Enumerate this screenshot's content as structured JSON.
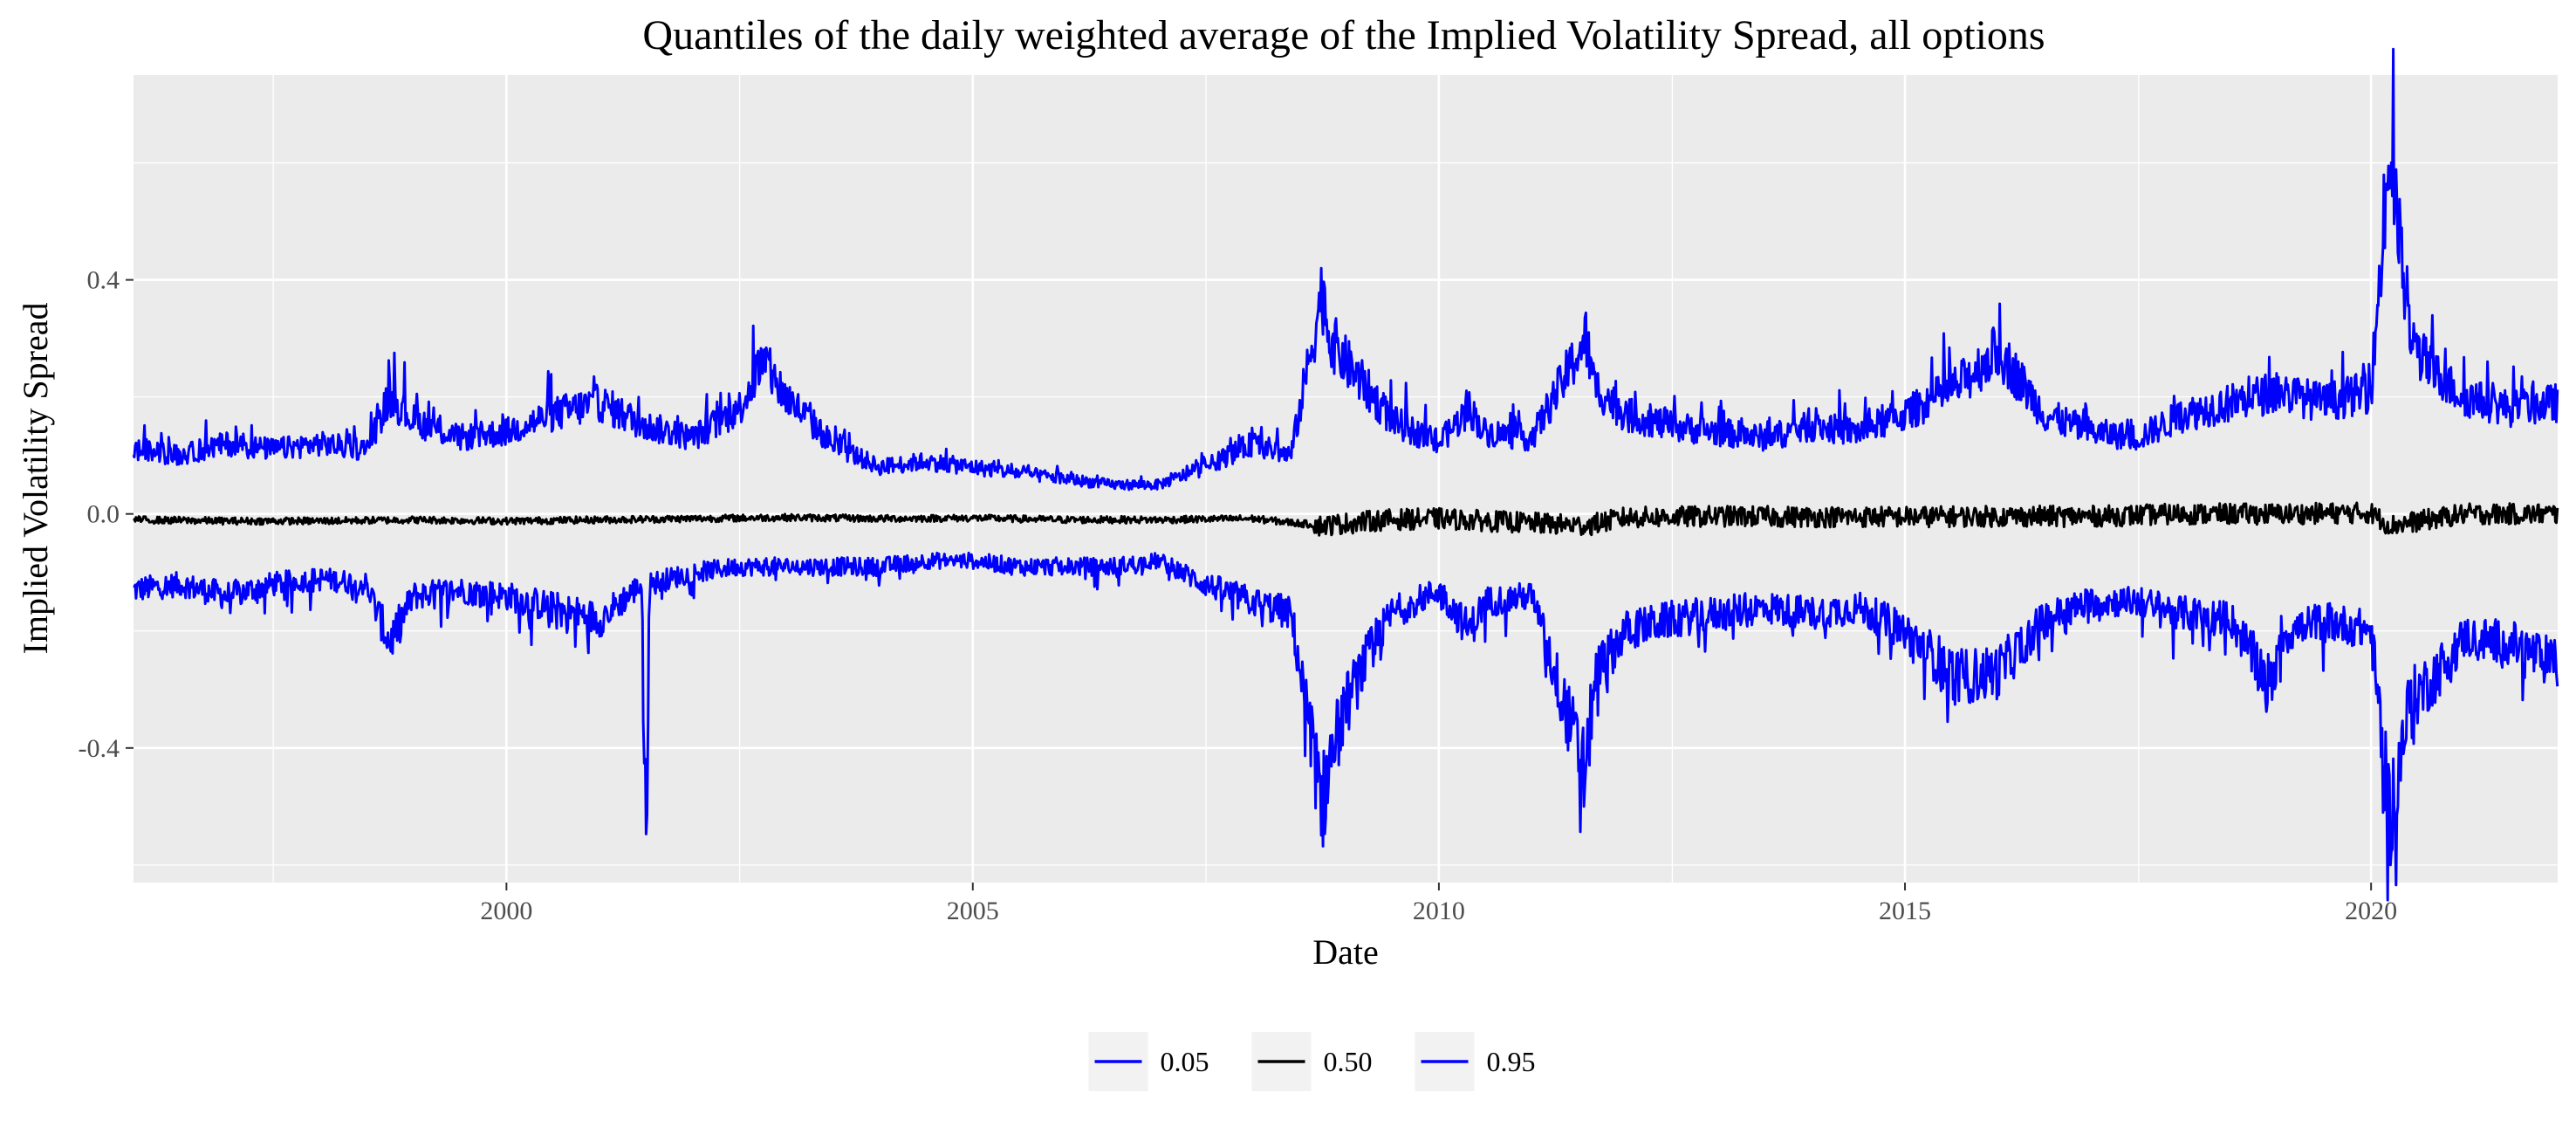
{
  "chart_data": {
    "type": "line",
    "title": "Quantiles of the daily weighted average of the Implied Volatility Spread, all options",
    "xlabel": "Date",
    "ylabel": "Implied Volatility Spread",
    "xlim": [
      "1996-01-01",
      "2022-01-01"
    ],
    "ylim": [
      -0.63,
      0.75
    ],
    "x_ticks": [
      {
        "date": "2000-01-01",
        "label": "2000"
      },
      {
        "date": "2005-01-01",
        "label": "2005"
      },
      {
        "date": "2010-01-01",
        "label": "2010"
      },
      {
        "date": "2015-01-01",
        "label": "2015"
      },
      {
        "date": "2020-01-01",
        "label": "2020"
      }
    ],
    "y_ticks": [
      {
        "value": -0.4,
        "label": "-0.4"
      },
      {
        "value": 0.0,
        "label": "0.0"
      },
      {
        "value": 0.4,
        "label": "0.4"
      }
    ],
    "grid": true,
    "legend_position": "bottom",
    "colors": {
      "panel_background": "#EBEBEB",
      "grid": "#FFFFFF",
      "blue": "#0000FF",
      "black": "#000000"
    },
    "legend": [
      {
        "label": "0.05",
        "color": "#0000FF"
      },
      {
        "label": "0.50",
        "color": "#000000"
      },
      {
        "label": "0.95",
        "color": "#0000FF"
      }
    ],
    "series": [
      {
        "name": "0.05",
        "color": "#0000FF",
        "points": [
          [
            "1996-01-01",
            -0.13
          ],
          [
            "1996-07-01",
            -0.12
          ],
          [
            "1997-01-01",
            -0.14
          ],
          [
            "1997-07-01",
            -0.12
          ],
          [
            "1998-01-01",
            -0.11
          ],
          [
            "1998-07-01",
            -0.12
          ],
          [
            "1998-10-01",
            -0.22
          ],
          [
            "1999-01-01",
            -0.14
          ],
          [
            "1999-07-01",
            -0.13
          ],
          [
            "2000-01-01",
            -0.14
          ],
          [
            "2000-07-01",
            -0.16
          ],
          [
            "2001-01-01",
            -0.18
          ],
          [
            "2001-06-15",
            -0.12
          ],
          [
            "2001-07-01",
            -0.58
          ],
          [
            "2001-07-15",
            -0.12
          ],
          [
            "2002-01-01",
            -0.1
          ],
          [
            "2002-07-01",
            -0.09
          ],
          [
            "2003-01-01",
            -0.09
          ],
          [
            "2003-07-01",
            -0.09
          ],
          [
            "2004-01-01",
            -0.09
          ],
          [
            "2004-07-01",
            -0.08
          ],
          [
            "2005-01-01",
            -0.08
          ],
          [
            "2005-07-01",
            -0.09
          ],
          [
            "2006-01-01",
            -0.09
          ],
          [
            "2006-07-01",
            -0.09
          ],
          [
            "2007-01-01",
            -0.08
          ],
          [
            "2007-07-01",
            -0.12
          ],
          [
            "2008-01-01",
            -0.15
          ],
          [
            "2008-06-01",
            -0.17
          ],
          [
            "2008-10-01",
            -0.5
          ],
          [
            "2008-11-01",
            -0.42
          ],
          [
            "2009-01-01",
            -0.33
          ],
          [
            "2009-04-01",
            -0.24
          ],
          [
            "2009-07-01",
            -0.17
          ],
          [
            "2010-01-01",
            -0.13
          ],
          [
            "2010-05-01",
            -0.2
          ],
          [
            "2010-07-01",
            -0.15
          ],
          [
            "2011-01-01",
            -0.14
          ],
          [
            "2011-08-01",
            -0.45
          ],
          [
            "2011-09-01",
            -0.28
          ],
          [
            "2012-01-01",
            -0.2
          ],
          [
            "2012-07-01",
            -0.18
          ],
          [
            "2013-01-01",
            -0.17
          ],
          [
            "2013-07-01",
            -0.16
          ],
          [
            "2014-01-01",
            -0.17
          ],
          [
            "2014-07-01",
            -0.16
          ],
          [
            "2015-01-01",
            -0.2
          ],
          [
            "2015-08-01",
            -0.28
          ],
          [
            "2016-01-01",
            -0.27
          ],
          [
            "2016-07-01",
            -0.18
          ],
          [
            "2017-01-01",
            -0.15
          ],
          [
            "2017-07-01",
            -0.15
          ],
          [
            "2018-01-01",
            -0.17
          ],
          [
            "2018-07-01",
            -0.18
          ],
          [
            "2018-12-15",
            -0.3
          ],
          [
            "2019-01-01",
            -0.21
          ],
          [
            "2019-07-01",
            -0.18
          ],
          [
            "2020-01-01",
            -0.2
          ],
          [
            "2020-03-15",
            -0.52
          ],
          [
            "2020-06-01",
            -0.32
          ],
          [
            "2020-09-01",
            -0.28
          ],
          [
            "2021-01-01",
            -0.21
          ],
          [
            "2021-07-01",
            -0.22
          ],
          [
            "2021-12-31",
            -0.26
          ]
        ]
      },
      {
        "name": "0.50",
        "color": "#000000",
        "points": [
          [
            "1996-01-01",
            -0.01
          ],
          [
            "1997-01-01",
            -0.012
          ],
          [
            "1998-01-01",
            -0.012
          ],
          [
            "1999-01-01",
            -0.01
          ],
          [
            "2000-01-01",
            -0.012
          ],
          [
            "2001-01-01",
            -0.01
          ],
          [
            "2002-01-01",
            -0.008
          ],
          [
            "2003-01-01",
            -0.006
          ],
          [
            "2004-01-01",
            -0.008
          ],
          [
            "2005-01-01",
            -0.007
          ],
          [
            "2006-01-01",
            -0.01
          ],
          [
            "2007-01-01",
            -0.01
          ],
          [
            "2008-01-01",
            -0.008
          ],
          [
            "2008-10-01",
            -0.02
          ],
          [
            "2009-06-01",
            -0.01
          ],
          [
            "2010-01-01",
            -0.008
          ],
          [
            "2011-08-01",
            -0.02
          ],
          [
            "2012-01-01",
            -0.006
          ],
          [
            "2013-01-01",
            -0.004
          ],
          [
            "2014-01-01",
            -0.005
          ],
          [
            "2015-01-01",
            -0.005
          ],
          [
            "2016-01-01",
            -0.004
          ],
          [
            "2017-01-01",
            -0.004
          ],
          [
            "2018-01-01",
            0.0
          ],
          [
            "2019-01-01",
            0.0
          ],
          [
            "2020-01-01",
            0.002
          ],
          [
            "2020-03-15",
            -0.02
          ],
          [
            "2021-01-01",
            0.0
          ],
          [
            "2021-12-31",
            0.0
          ]
        ]
      },
      {
        "name": "0.95",
        "color": "#0000FF",
        "points": [
          [
            "1996-01-01",
            0.11
          ],
          [
            "1996-07-01",
            0.1
          ],
          [
            "1997-01-01",
            0.12
          ],
          [
            "1997-07-01",
            0.11
          ],
          [
            "1998-01-01",
            0.12
          ],
          [
            "1998-07-01",
            0.11
          ],
          [
            "1998-10-01",
            0.2
          ],
          [
            "1999-01-01",
            0.16
          ],
          [
            "1999-07-01",
            0.13
          ],
          [
            "2000-01-01",
            0.14
          ],
          [
            "2000-07-01",
            0.17
          ],
          [
            "2001-01-01",
            0.19
          ],
          [
            "2001-07-01",
            0.15
          ],
          [
            "2002-01-01",
            0.13
          ],
          [
            "2002-07-01",
            0.18
          ],
          [
            "2002-10-01",
            0.26
          ],
          [
            "2003-01-01",
            0.2
          ],
          [
            "2003-07-01",
            0.12
          ],
          [
            "2004-01-01",
            0.08
          ],
          [
            "2004-07-01",
            0.09
          ],
          [
            "2005-01-01",
            0.08
          ],
          [
            "2005-07-01",
            0.07
          ],
          [
            "2006-01-01",
            0.06
          ],
          [
            "2006-07-01",
            0.05
          ],
          [
            "2007-01-01",
            0.05
          ],
          [
            "2007-07-01",
            0.08
          ],
          [
            "2008-01-01",
            0.12
          ],
          [
            "2008-06-01",
            0.1
          ],
          [
            "2008-10-01",
            0.38
          ],
          [
            "2008-11-01",
            0.3
          ],
          [
            "2009-01-01",
            0.26
          ],
          [
            "2009-04-01",
            0.21
          ],
          [
            "2009-07-01",
            0.16
          ],
          [
            "2010-01-01",
            0.12
          ],
          [
            "2010-05-01",
            0.18
          ],
          [
            "2010-07-01",
            0.14
          ],
          [
            "2011-01-01",
            0.13
          ],
          [
            "2011-08-01",
            0.3
          ],
          [
            "2011-09-01",
            0.22
          ],
          [
            "2012-01-01",
            0.17
          ],
          [
            "2012-07-01",
            0.15
          ],
          [
            "2013-01-01",
            0.14
          ],
          [
            "2013-07-01",
            0.13
          ],
          [
            "2014-01-01",
            0.15
          ],
          [
            "2014-07-01",
            0.14
          ],
          [
            "2015-01-01",
            0.17
          ],
          [
            "2015-08-01",
            0.22
          ],
          [
            "2016-01-01",
            0.28
          ],
          [
            "2016-07-01",
            0.17
          ],
          [
            "2017-01-01",
            0.14
          ],
          [
            "2017-07-01",
            0.13
          ],
          [
            "2018-01-01",
            0.17
          ],
          [
            "2018-07-01",
            0.19
          ],
          [
            "2019-01-01",
            0.21
          ],
          [
            "2019-07-01",
            0.19
          ],
          [
            "2020-01-01",
            0.21
          ],
          [
            "2020-03-15",
            0.62
          ],
          [
            "2020-06-01",
            0.3
          ],
          [
            "2020-09-01",
            0.24
          ],
          [
            "2021-01-01",
            0.2
          ],
          [
            "2021-07-01",
            0.18
          ],
          [
            "2021-12-31",
            0.19
          ]
        ]
      }
    ]
  }
}
